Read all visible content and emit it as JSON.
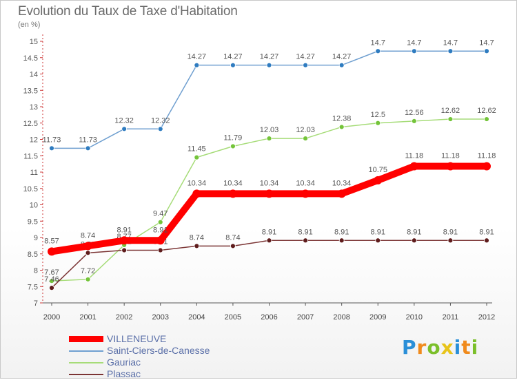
{
  "header": {
    "title": "Evolution du Taux de Taxe d'Habitation",
    "subtitle": "(en %)"
  },
  "logo": {
    "text": "Proxiti",
    "letters": [
      {
        "ch": "P",
        "color": "#2a8fd8"
      },
      {
        "ch": "r",
        "color": "#f08a1c"
      },
      {
        "ch": "o",
        "color": "#7bbf2a"
      },
      {
        "ch": "x",
        "color": "#e8c41a"
      },
      {
        "ch": "i",
        "color": "#2a8fd8"
      },
      {
        "ch": "t",
        "color": "#f08a1c"
      },
      {
        "ch": "i",
        "color": "#7bbf2a"
      }
    ]
  },
  "chart_data": {
    "type": "line",
    "title": "Evolution du Taux de Taxe d'Habitation",
    "subtitle": "(en %)",
    "xlabel": "",
    "ylabel": "",
    "x": [
      "2000",
      "2001",
      "2002",
      "2003",
      "2004",
      "2005",
      "2006",
      "2007",
      "2008",
      "2009",
      "2010",
      "2011",
      "2012"
    ],
    "ylim": [
      7,
      15
    ],
    "yticks": [
      "7",
      "7.5",
      "8",
      "8.5",
      "9",
      "9.5",
      "10",
      "10.5",
      "11",
      "11.5",
      "12",
      "12.5",
      "13",
      "13.5",
      "14",
      "14.5",
      "15"
    ],
    "grid": false,
    "legend_position": "bottom-left",
    "series": [
      {
        "name": "Saint-Ciers-de-Canesse",
        "color": "#6f9fd0",
        "marker": "#2f7cc0",
        "values": [
          11.73,
          11.73,
          12.32,
          12.32,
          14.27,
          14.27,
          14.27,
          14.27,
          14.27,
          14.7,
          14.7,
          14.7,
          14.7
        ],
        "labels": [
          "11.73",
          "11.73",
          "12.32",
          "12.32",
          "14.27",
          "14.27",
          "14.27",
          "14.27",
          "14.27",
          "14.7",
          "14.7",
          "14.7",
          "14.7"
        ]
      },
      {
        "name": "Gauriac",
        "color": "#a6dc78",
        "marker": "#74c43a",
        "values": [
          7.67,
          7.72,
          8.77,
          9.47,
          11.45,
          11.79,
          12.03,
          12.03,
          12.38,
          12.5,
          12.56,
          12.62,
          12.62
        ],
        "labels": [
          "7.67",
          "7.72",
          "8.77",
          "9.47",
          "11.45",
          "11.79",
          "12.03",
          "12.03",
          "12.38",
          "12.5",
          "12.56",
          "12.62",
          "12.62"
        ]
      },
      {
        "name": "Plassac",
        "color": "#7b3434",
        "marker": "#5e1c1c",
        "values": [
          7.46,
          8.53,
          8.61,
          8.61,
          8.74,
          8.74,
          8.91,
          8.91,
          8.91,
          8.91,
          8.91,
          8.91,
          8.91
        ],
        "labels": [
          "7.46",
          "8.53",
          "8.61",
          "8.61",
          "8.74",
          "8.74",
          "8.91",
          "8.91",
          "8.91",
          "8.91",
          "8.91",
          "8.91",
          "8.91"
        ]
      },
      {
        "name": "VILLENEUVE",
        "color": "#ff0000",
        "marker": "#ff0000",
        "thick": true,
        "values": [
          8.57,
          8.74,
          8.91,
          8.91,
          10.34,
          10.34,
          10.34,
          10.34,
          10.34,
          10.75,
          11.18,
          11.18,
          11.18
        ],
        "labels": [
          "8.57",
          "8.74",
          "8.91",
          "8.91",
          "10.34",
          "10.34",
          "10.34",
          "10.34",
          "10.34",
          "10.75",
          "11.18",
          "11.18",
          "11.18"
        ]
      }
    ],
    "legend": [
      {
        "name": "VILLENEUVE",
        "color": "#ff0000",
        "thick": true
      },
      {
        "name": "Saint-Ciers-de-Canesse",
        "color": "#6f9fd0"
      },
      {
        "name": "Gauriac",
        "color": "#a6dc78"
      },
      {
        "name": "Plassac",
        "color": "#7b3434"
      }
    ]
  }
}
